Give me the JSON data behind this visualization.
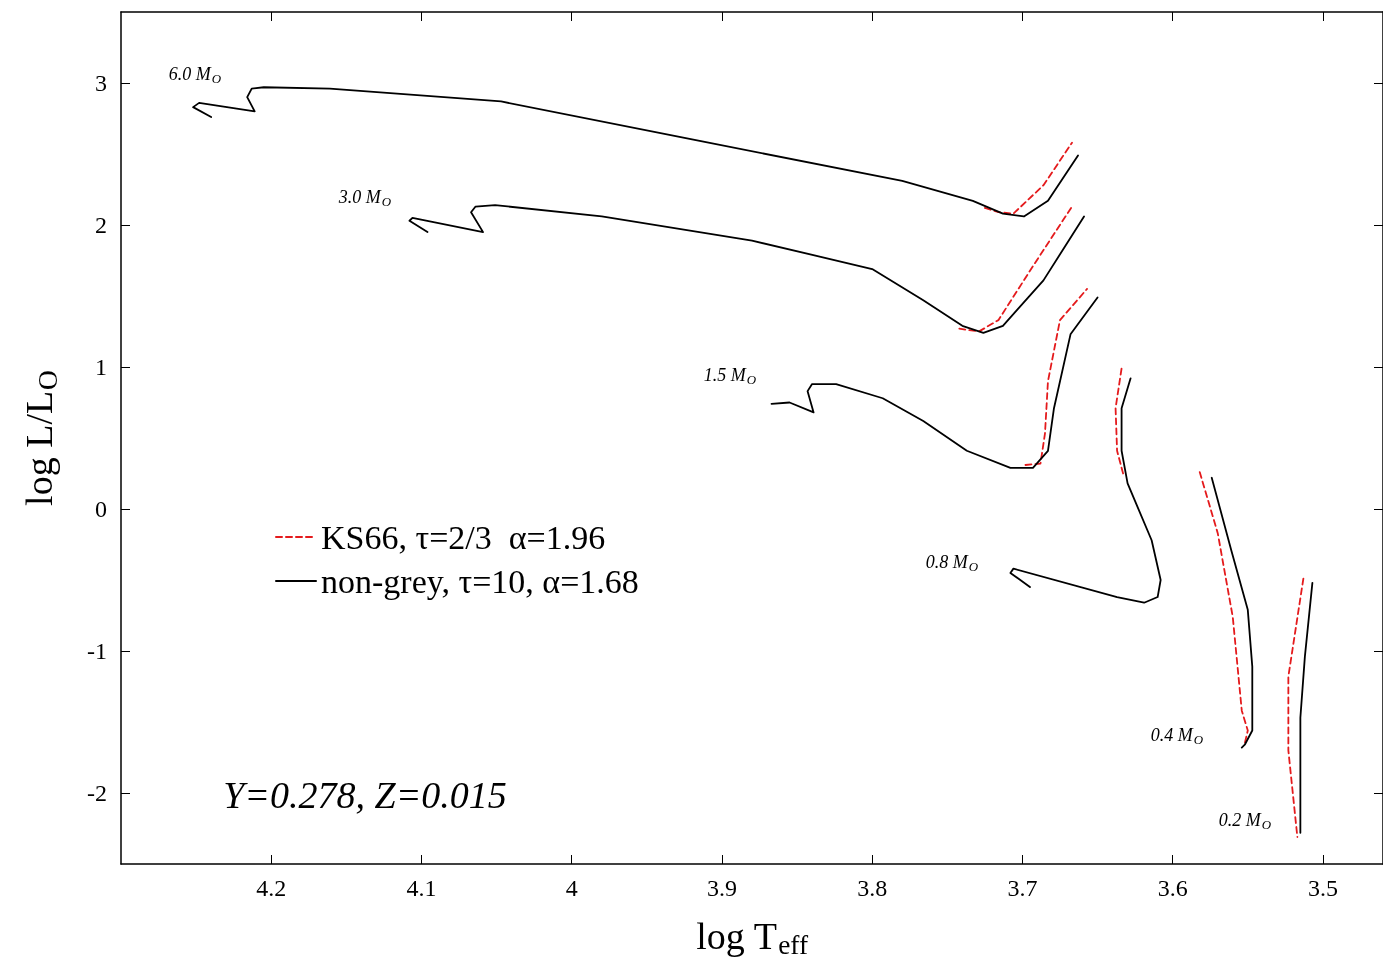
{
  "chart_data": {
    "type": "line",
    "xlabel": "log T$_{eff}$",
    "ylabel": "log L/L$_{O}$",
    "xlim": [
      4.3,
      3.46
    ],
    "ylim": [
      -2.5,
      3.5
    ],
    "xticks": [
      4.2,
      4.1,
      {
        "value": 4,
        "label": "4"
      },
      3.9,
      3.8,
      3.7,
      3.6,
      3.5
    ],
    "yticks": [
      -2,
      -1,
      0,
      1,
      2,
      3
    ],
    "grid": false,
    "legend": "left",
    "marker": "none",
    "series": [
      {
        "name": "KS66, τ=2/3  α=1.96",
        "color": "#e41a1c",
        "line_style": "dashed",
        "x": [
          3.725,
          3.716,
          3.706,
          3.686,
          3.667,
          null,
          3.742,
          3.729,
          3.716,
          3.693,
          3.667,
          null,
          3.698,
          3.688,
          3.685,
          3.683,
          3.675,
          3.657,
          null,
          3.633,
          3.637,
          3.638,
          3.634,
          null,
          3.582,
          3.57,
          3.56,
          3.554,
          3.55,
          3.552,
          null,
          3.513,
          3.523,
          3.523,
          3.517
        ],
        "values": [
          2.12,
          2.09,
          2.08,
          2.28,
          2.58,
          null,
          1.27,
          1.25,
          1.33,
          1.71,
          2.13,
          null,
          0.31,
          0.32,
          0.53,
          0.9,
          1.33,
          1.55,
          null,
          0.25,
          0.41,
          0.71,
          0.99,
          null,
          0.26,
          -0.17,
          -0.76,
          -1.42,
          -1.56,
          -1.65,
          null,
          -0.49,
          -1.18,
          -1.7,
          -2.31
        ]
      },
      {
        "name": "non-grey, τ=10, α=1.68",
        "color": "#000000",
        "line_style": "solid",
        "x": [
          4.24,
          4.252,
          4.248,
          4.211,
          4.216,
          4.213,
          4.205,
          4.161,
          4.047,
          3.914,
          3.78,
          3.733,
          3.713,
          3.699,
          3.683,
          3.663,
          null,
          4.096,
          4.108,
          4.106,
          4.059,
          4.067,
          4.064,
          4.051,
          3.98,
          3.88,
          3.8,
          3.766,
          3.74,
          3.726,
          3.713,
          3.686,
          3.659,
          null,
          3.867,
          3.855,
          3.839,
          3.843,
          3.84,
          3.824,
          3.793,
          3.766,
          3.737,
          3.708,
          3.693,
          3.683,
          3.679,
          3.668,
          3.65,
          null,
          3.695,
          3.708,
          3.706,
          3.637,
          3.619,
          3.61,
          3.608,
          3.614,
          3.63,
          3.634,
          3.634,
          3.628,
          null,
          3.574,
          3.561,
          3.55,
          3.547,
          3.547,
          3.552,
          3.554,
          null,
          3.507,
          3.512,
          3.515,
          3.515
        ],
        "values": [
          2.76,
          2.83,
          2.86,
          2.8,
          2.9,
          2.96,
          2.97,
          2.96,
          2.87,
          2.59,
          2.31,
          2.17,
          2.08,
          2.06,
          2.17,
          2.49,
          null,
          1.95,
          2.03,
          2.05,
          1.95,
          2.09,
          2.13,
          2.14,
          2.06,
          1.89,
          1.69,
          1.47,
          1.29,
          1.24,
          1.29,
          1.61,
          2.06,
          null,
          0.74,
          0.75,
          0.68,
          0.83,
          0.88,
          0.88,
          0.78,
          0.62,
          0.41,
          0.29,
          0.29,
          0.41,
          0.71,
          1.23,
          1.49,
          null,
          -0.55,
          -0.45,
          -0.42,
          -0.62,
          -0.66,
          -0.62,
          -0.5,
          -0.22,
          0.18,
          0.41,
          0.71,
          0.92,
          null,
          0.22,
          -0.29,
          -0.71,
          -1.11,
          -1.56,
          -1.66,
          -1.68,
          null,
          -0.52,
          -1.04,
          -1.47,
          -2.28
        ]
      }
    ],
    "annotations": [
      "6.0 M$_{O}$",
      "3.0 M$_{O}$",
      "1.5 M$_{O}$",
      "0.8 M$_{O}$",
      "0.4 M$_{O}$",
      "0.2 M$_{O}$",
      "Y=0.278, Z=0.015"
    ]
  }
}
